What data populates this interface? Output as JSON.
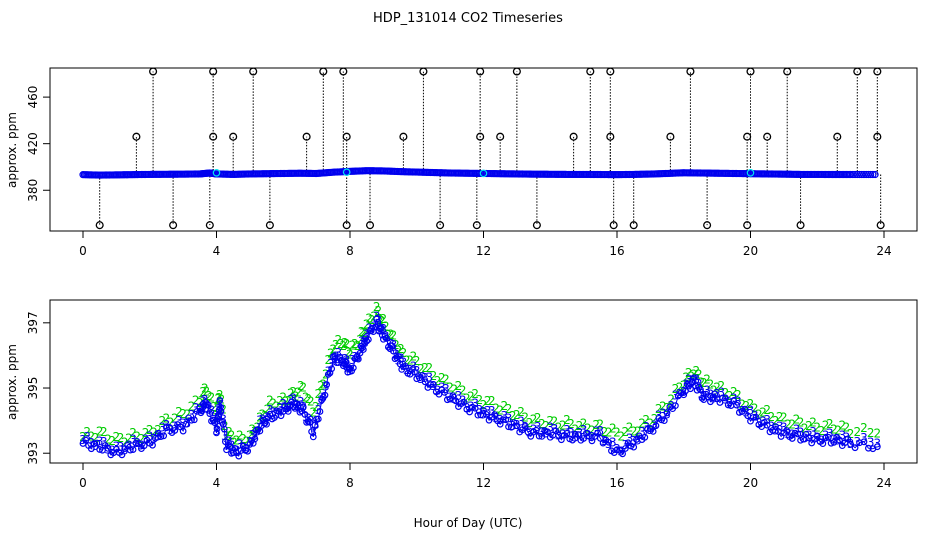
{
  "title": "HDP_131014  CO2 Timeseries",
  "xlabel": "Hour of Day (UTC)",
  "colors": {
    "series1": "#0000ee",
    "series2": "#00cc00",
    "series3": "#0000ee",
    "cyan": "#00e5ee",
    "outliers": "#000000"
  },
  "chart_data": [
    {
      "type": "scatter",
      "ylabel": "approx. ppm",
      "xlim": [
        0,
        24
      ],
      "ylim": [
        345,
        485
      ],
      "x_ticks": [
        "0",
        "4",
        "8",
        "12",
        "16",
        "20",
        "24"
      ],
      "y_ticks": [
        "380",
        "420",
        "460"
      ],
      "y_tick_values": [
        380,
        420,
        460
      ],
      "baseline": [
        [
          0.0,
          393.4
        ],
        [
          0.5,
          393.0
        ],
        [
          1.0,
          393.2
        ],
        [
          1.5,
          393.4
        ],
        [
          2.0,
          393.6
        ],
        [
          2.5,
          393.7
        ],
        [
          3.0,
          393.8
        ],
        [
          3.5,
          394.0
        ],
        [
          3.8,
          394.8
        ],
        [
          4.0,
          394.0
        ],
        [
          4.5,
          393.6
        ],
        [
          5.0,
          394.0
        ],
        [
          5.5,
          394.2
        ],
        [
          6.0,
          394.4
        ],
        [
          6.5,
          394.6
        ],
        [
          7.0,
          394.4
        ],
        [
          7.5,
          395.5
        ],
        [
          8.0,
          396.2
        ],
        [
          8.5,
          396.8
        ],
        [
          9.0,
          396.6
        ],
        [
          9.5,
          396.0
        ],
        [
          10.0,
          395.6
        ],
        [
          10.5,
          395.2
        ],
        [
          11.0,
          394.8
        ],
        [
          11.5,
          394.6
        ],
        [
          12.0,
          394.4
        ],
        [
          12.5,
          394.2
        ],
        [
          13.0,
          394.0
        ],
        [
          13.5,
          393.8
        ],
        [
          14.0,
          393.7
        ],
        [
          14.5,
          393.6
        ],
        [
          15.0,
          393.6
        ],
        [
          15.5,
          393.5
        ],
        [
          16.0,
          393.4
        ],
        [
          16.5,
          393.6
        ],
        [
          17.0,
          393.9
        ],
        [
          17.5,
          394.4
        ],
        [
          18.0,
          395.0
        ],
        [
          18.5,
          394.8
        ],
        [
          19.0,
          394.6
        ],
        [
          19.5,
          394.4
        ],
        [
          20.0,
          394.2
        ],
        [
          20.5,
          394.0
        ],
        [
          21.0,
          393.8
        ],
        [
          21.5,
          393.6
        ],
        [
          22.0,
          393.6
        ],
        [
          22.5,
          393.5
        ],
        [
          23.0,
          393.5
        ],
        [
          23.8,
          393.5
        ]
      ],
      "high_outliers": [
        [
          2.1,
          482
        ],
        [
          3.9,
          482
        ],
        [
          5.1,
          482
        ],
        [
          7.2,
          482
        ],
        [
          7.8,
          482
        ],
        [
          10.2,
          482
        ],
        [
          11.9,
          482
        ],
        [
          13.0,
          482
        ],
        [
          15.2,
          482
        ],
        [
          15.8,
          482
        ],
        [
          18.2,
          482
        ],
        [
          20.0,
          482
        ],
        [
          21.1,
          482
        ],
        [
          23.2,
          482
        ],
        [
          23.8,
          482
        ]
      ],
      "mid_outliers": [
        [
          1.6,
          426
        ],
        [
          3.9,
          426
        ],
        [
          4.5,
          426
        ],
        [
          6.7,
          426
        ],
        [
          7.9,
          426
        ],
        [
          9.6,
          426
        ],
        [
          11.9,
          426
        ],
        [
          12.5,
          426
        ],
        [
          14.7,
          426
        ],
        [
          15.8,
          426
        ],
        [
          17.6,
          426
        ],
        [
          19.9,
          426
        ],
        [
          20.5,
          426
        ],
        [
          22.6,
          426
        ],
        [
          23.8,
          426
        ]
      ],
      "low_outliers": [
        [
          0.5,
          350
        ],
        [
          2.7,
          350
        ],
        [
          3.8,
          350
        ],
        [
          5.6,
          350
        ],
        [
          7.9,
          350
        ],
        [
          8.6,
          350
        ],
        [
          10.7,
          350
        ],
        [
          11.8,
          350
        ],
        [
          13.6,
          350
        ],
        [
          15.9,
          350
        ],
        [
          16.5,
          350
        ],
        [
          18.7,
          350
        ],
        [
          19.9,
          350
        ],
        [
          21.5,
          350
        ],
        [
          23.9,
          350
        ]
      ],
      "cyan_points": [
        [
          4.0,
          395.0
        ],
        [
          7.9,
          395.5
        ],
        [
          12.0,
          394.5
        ],
        [
          20.0,
          395.0
        ]
      ]
    },
    {
      "type": "line",
      "ylabel": "approx. ppm",
      "xlim": [
        0,
        24
      ],
      "ylim": [
        392.7,
        397.7
      ],
      "x_ticks": [
        "0",
        "4",
        "8",
        "12",
        "16",
        "20",
        "24"
      ],
      "y_ticks": [
        "393",
        "395",
        "397"
      ],
      "y_tick_values": [
        393,
        395,
        397
      ],
      "series": [
        {
          "marker": "2",
          "values": [
            [
              0.0,
              393.5
            ],
            [
              0.5,
              393.6
            ],
            [
              1.0,
              393.4
            ],
            [
              1.5,
              393.5
            ],
            [
              2.0,
              393.6
            ],
            [
              2.5,
              394.0
            ],
            [
              3.0,
              394.2
            ],
            [
              3.5,
              394.6
            ],
            [
              3.7,
              395.0
            ],
            [
              4.0,
              394.2
            ],
            [
              4.1,
              394.9
            ],
            [
              4.3,
              393.6
            ],
            [
              4.6,
              393.4
            ],
            [
              5.0,
              393.5
            ],
            [
              5.3,
              394.0
            ],
            [
              5.6,
              394.5
            ],
            [
              6.0,
              394.6
            ],
            [
              6.3,
              394.8
            ],
            [
              6.6,
              395.0
            ],
            [
              6.9,
              394.3
            ],
            [
              7.2,
              395.2
            ],
            [
              7.5,
              396.3
            ],
            [
              7.8,
              396.4
            ],
            [
              8.0,
              396.1
            ],
            [
              8.3,
              396.5
            ],
            [
              8.5,
              396.9
            ],
            [
              8.8,
              397.4
            ],
            [
              9.0,
              397.0
            ],
            [
              9.3,
              396.5
            ],
            [
              9.6,
              396.0
            ],
            [
              10.0,
              395.8
            ],
            [
              10.5,
              395.4
            ],
            [
              11.0,
              395.1
            ],
            [
              11.5,
              394.8
            ],
            [
              12.0,
              394.6
            ],
            [
              12.5,
              394.4
            ],
            [
              13.0,
              394.2
            ],
            [
              13.5,
              394.0
            ],
            [
              14.0,
              393.9
            ],
            [
              14.5,
              393.9
            ],
            [
              15.0,
              393.8
            ],
            [
              15.5,
              393.8
            ],
            [
              16.0,
              393.6
            ],
            [
              16.5,
              393.7
            ],
            [
              17.0,
              394.0
            ],
            [
              17.5,
              394.5
            ],
            [
              18.0,
              395.2
            ],
            [
              18.3,
              395.5
            ],
            [
              18.6,
              395.2
            ],
            [
              19.0,
              395.0
            ],
            [
              19.5,
              394.8
            ],
            [
              20.0,
              394.4
            ],
            [
              20.5,
              394.2
            ],
            [
              21.0,
              394.0
            ],
            [
              21.5,
              393.9
            ],
            [
              22.0,
              393.8
            ],
            [
              22.5,
              393.8
            ],
            [
              23.0,
              393.7
            ],
            [
              23.8,
              393.6
            ]
          ]
        },
        {
          "marker": "3",
          "values": [
            [
              0.0,
              393.4
            ],
            [
              0.5,
              393.3
            ],
            [
              1.0,
              393.1
            ],
            [
              1.5,
              393.3
            ],
            [
              2.0,
              393.4
            ],
            [
              2.5,
              393.8
            ],
            [
              3.0,
              393.9
            ],
            [
              3.5,
              394.4
            ],
            [
              3.7,
              394.6
            ],
            [
              4.0,
              393.8
            ],
            [
              4.1,
              394.6
            ],
            [
              4.3,
              393.3
            ],
            [
              4.6,
              393.1
            ],
            [
              5.0,
              393.3
            ],
            [
              5.3,
              393.9
            ],
            [
              5.6,
              394.2
            ],
            [
              6.0,
              394.4
            ],
            [
              6.3,
              394.6
            ],
            [
              6.6,
              394.4
            ],
            [
              6.9,
              393.7
            ],
            [
              7.2,
              394.8
            ],
            [
              7.5,
              396.0
            ],
            [
              7.8,
              395.9
            ],
            [
              8.0,
              395.6
            ],
            [
              8.3,
              396.2
            ],
            [
              8.5,
              396.6
            ],
            [
              8.8,
              397.1
            ],
            [
              9.0,
              396.7
            ],
            [
              9.3,
              396.2
            ],
            [
              9.6,
              395.7
            ],
            [
              10.0,
              395.5
            ],
            [
              10.5,
              395.1
            ],
            [
              11.0,
              394.8
            ],
            [
              11.5,
              394.5
            ],
            [
              12.0,
              394.3
            ],
            [
              12.5,
              394.1
            ],
            [
              13.0,
              393.9
            ],
            [
              13.5,
              393.7
            ],
            [
              14.0,
              393.7
            ],
            [
              14.5,
              393.6
            ],
            [
              15.0,
              393.6
            ],
            [
              15.5,
              393.6
            ],
            [
              16.0,
              393.1
            ],
            [
              16.5,
              393.4
            ],
            [
              17.0,
              393.8
            ],
            [
              17.5,
              394.3
            ],
            [
              18.0,
              395.0
            ],
            [
              18.3,
              395.3
            ],
            [
              18.6,
              394.8
            ],
            [
              19.0,
              394.8
            ],
            [
              19.5,
              394.6
            ],
            [
              20.0,
              394.2
            ],
            [
              20.5,
              393.9
            ],
            [
              21.0,
              393.7
            ],
            [
              21.5,
              393.6
            ],
            [
              22.0,
              393.5
            ],
            [
              22.5,
              393.5
            ],
            [
              23.0,
              393.4
            ],
            [
              23.8,
              393.3
            ]
          ]
        },
        {
          "marker": "line",
          "values": [
            [
              0.0,
              393.3
            ],
            [
              0.5,
              393.2
            ],
            [
              1.0,
              393.0
            ],
            [
              1.5,
              393.2
            ],
            [
              2.0,
              393.3
            ],
            [
              2.5,
              393.7
            ],
            [
              3.0,
              393.8
            ],
            [
              3.5,
              394.3
            ],
            [
              3.7,
              394.5
            ],
            [
              4.0,
              393.7
            ],
            [
              4.1,
              394.5
            ],
            [
              4.3,
              393.2
            ],
            [
              4.6,
              393.0
            ],
            [
              5.0,
              393.2
            ],
            [
              5.3,
              393.8
            ],
            [
              5.6,
              394.1
            ],
            [
              6.0,
              394.3
            ],
            [
              6.3,
              394.5
            ],
            [
              6.6,
              394.3
            ],
            [
              6.9,
              393.6
            ],
            [
              7.2,
              394.7
            ],
            [
              7.5,
              395.9
            ],
            [
              7.8,
              395.8
            ],
            [
              8.0,
              395.5
            ],
            [
              8.3,
              396.1
            ],
            [
              8.5,
              396.5
            ],
            [
              8.8,
              397.0
            ],
            [
              9.0,
              396.6
            ],
            [
              9.3,
              396.1
            ],
            [
              9.6,
              395.6
            ],
            [
              10.0,
              395.4
            ],
            [
              10.5,
              395.0
            ],
            [
              11.0,
              394.7
            ],
            [
              11.5,
              394.4
            ],
            [
              12.0,
              394.2
            ],
            [
              12.5,
              394.0
            ],
            [
              13.0,
              393.8
            ],
            [
              13.5,
              393.6
            ],
            [
              14.0,
              393.6
            ],
            [
              14.5,
              393.5
            ],
            [
              15.0,
              393.5
            ],
            [
              15.5,
              393.5
            ],
            [
              16.0,
              393.0
            ],
            [
              16.5,
              393.3
            ],
            [
              17.0,
              393.7
            ],
            [
              17.5,
              394.2
            ],
            [
              18.0,
              394.9
            ],
            [
              18.3,
              395.2
            ],
            [
              18.6,
              394.7
            ],
            [
              19.0,
              394.7
            ],
            [
              19.5,
              394.5
            ],
            [
              20.0,
              394.1
            ],
            [
              20.5,
              393.8
            ],
            [
              21.0,
              393.6
            ],
            [
              21.5,
              393.5
            ],
            [
              22.0,
              393.4
            ],
            [
              22.5,
              393.4
            ],
            [
              23.0,
              393.3
            ],
            [
              23.8,
              393.2
            ]
          ]
        }
      ]
    }
  ]
}
